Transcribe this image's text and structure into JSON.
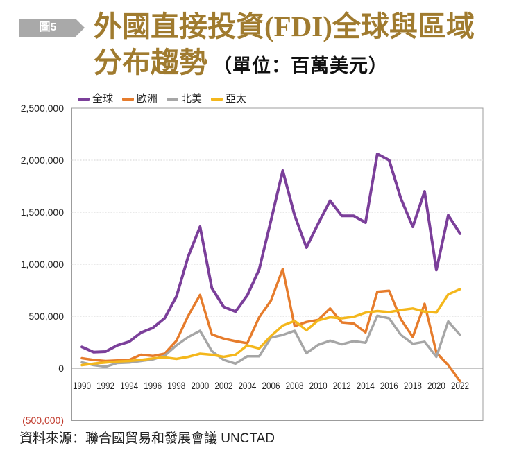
{
  "figure": {
    "badge": "圖5",
    "source": "資料來源：聯合國貿易和發展會議 UNCTAD"
  },
  "colors": {
    "title": "#a07b2f",
    "badge_bg": "#a9a9a9",
    "badge_text": "#ffffff",
    "text": "#222222",
    "negative_tick": "#c0392b",
    "gridline": "#d3d3d3",
    "zero_line": "#8c8c8c",
    "frame": "#9c9c9c"
  },
  "chart_data": {
    "type": "line",
    "title": {
      "line1": "外國直接投資(FDI)全球與區域",
      "line2": "分布趨勢",
      "unit": "（單位：百萬美元）"
    },
    "xlim": [
      1990,
      2022
    ],
    "ylim": [
      -500000,
      2500000
    ],
    "grid": true,
    "legend_position": "top-left",
    "x": [
      1990,
      1991,
      1992,
      1993,
      1994,
      1995,
      1996,
      1997,
      1998,
      1999,
      2000,
      2001,
      2002,
      2003,
      2004,
      2005,
      2006,
      2007,
      2008,
      2009,
      2010,
      2011,
      2012,
      2013,
      2014,
      2015,
      2016,
      2017,
      2018,
      2019,
      2020,
      2021,
      2022
    ],
    "x_ticks": [
      1990,
      1992,
      1994,
      1996,
      1998,
      2000,
      2002,
      2004,
      2006,
      2008,
      2010,
      2012,
      2014,
      2016,
      2018,
      2020,
      2022
    ],
    "x_tick_labels": [
      "1990",
      "1992",
      "1994",
      "1996",
      "1998",
      "2000",
      "2002",
      "2004",
      "2006",
      "2008",
      "2010",
      "2012",
      "2014",
      "2016",
      "2018",
      "2020",
      "2022"
    ],
    "y_ticks": [
      2500000,
      2000000,
      1500000,
      1000000,
      500000,
      0,
      -500000
    ],
    "y_tick_labels": [
      "2,500,000",
      "2,000,000",
      "1,500,000",
      "1,000,000",
      "500,000",
      "0",
      "(500,000)"
    ],
    "series": [
      {
        "name": "全球",
        "color": "#7b3f9a",
        "values": [
          205000,
          155000,
          160000,
          220000,
          255000,
          342000,
          388000,
          480000,
          690000,
          1075000,
          1360000,
          770000,
          590000,
          545000,
          700000,
          950000,
          1420000,
          1900000,
          1470000,
          1160000,
          1390000,
          1610000,
          1465000,
          1465000,
          1400000,
          2060000,
          2000000,
          1630000,
          1360000,
          1700000,
          945000,
          1470000,
          1295000
        ]
      },
      {
        "name": "歐洲",
        "color": "#e67c2c",
        "values": [
          97000,
          80000,
          70000,
          75000,
          80000,
          130000,
          118000,
          140000,
          265000,
          505000,
          705000,
          325000,
          285000,
          260000,
          240000,
          490000,
          650000,
          955000,
          405000,
          445000,
          465000,
          575000,
          440000,
          430000,
          345000,
          735000,
          745000,
          470000,
          300000,
          620000,
          150000,
          30000,
          -125000
        ]
      },
      {
        "name": "北美",
        "color": "#a6a6a6",
        "values": [
          57000,
          30000,
          15000,
          50000,
          55000,
          70000,
          85000,
          120000,
          220000,
          300000,
          360000,
          165000,
          80000,
          45000,
          115000,
          115000,
          295000,
          320000,
          360000,
          145000,
          225000,
          265000,
          230000,
          260000,
          245000,
          505000,
          480000,
          320000,
          235000,
          255000,
          110000,
          450000,
          320000
        ]
      },
      {
        "name": "亞太",
        "color": "#f4b71c",
        "values": [
          30000,
          45000,
          55000,
          65000,
          70000,
          80000,
          95000,
          105000,
          90000,
          110000,
          140000,
          130000,
          110000,
          130000,
          220000,
          190000,
          310000,
          410000,
          455000,
          365000,
          460000,
          490000,
          480000,
          495000,
          535000,
          550000,
          540000,
          560000,
          575000,
          545000,
          535000,
          710000,
          760000
        ]
      }
    ]
  }
}
